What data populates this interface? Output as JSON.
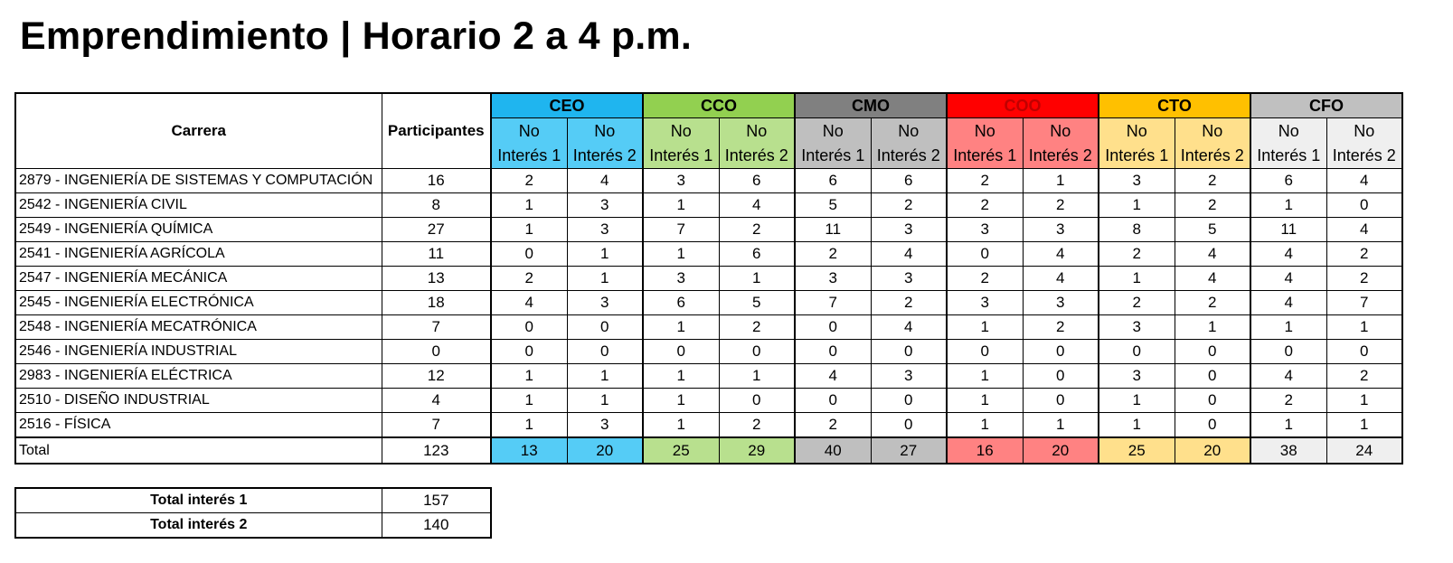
{
  "title": "Emprendimiento | Horario 2 a 4 p.m.",
  "header": {
    "carrera": "Carrera",
    "participantes": "Participantes",
    "groups": [
      {
        "name": "CEO",
        "sub1": [
          "No",
          "Interés 1"
        ],
        "sub2": [
          "No",
          "Interés 2"
        ],
        "color": "#1fb5ef",
        "fill": "#55ccf6"
      },
      {
        "name": "CCO",
        "sub1": [
          "No",
          "Interés 1"
        ],
        "sub2": [
          "No",
          "Interés 2"
        ],
        "color": "#92d050",
        "fill": "#b8e08e"
      },
      {
        "name": "CMO",
        "sub1": [
          "No",
          "Interés 1"
        ],
        "sub2": [
          "No",
          "Interés 2"
        ],
        "color": "#808080",
        "fill": "#bfbfbf"
      },
      {
        "name": "COO",
        "sub1": [
          "No",
          "Interés 1"
        ],
        "sub2": [
          "No",
          "Interés 2"
        ],
        "color": "#ff0000",
        "fill": "#ff8282"
      },
      {
        "name": "CTO",
        "sub1": [
          "No",
          "Interés 1"
        ],
        "sub2": [
          "No",
          "Interés 2"
        ],
        "color": "#ffc000",
        "fill": "#ffe08c"
      },
      {
        "name": "CFO",
        "sub1": [
          "No",
          "Interés 1"
        ],
        "sub2": [
          "No",
          "Interés 2"
        ],
        "color": "#c0c0c0",
        "fill": "#efefef"
      }
    ]
  },
  "rows": [
    {
      "carrera": "2879 - INGENIERÍA DE SISTEMAS Y COMPUTACIÓN",
      "participantes": "16",
      "values": [
        "2",
        "4",
        "3",
        "6",
        "6",
        "6",
        "2",
        "1",
        "3",
        "2",
        "6",
        "4"
      ]
    },
    {
      "carrera": "2542 - INGENIERÍA CIVIL",
      "participantes": "8",
      "values": [
        "1",
        "3",
        "1",
        "4",
        "5",
        "2",
        "2",
        "2",
        "1",
        "2",
        "1",
        "0"
      ]
    },
    {
      "carrera": "2549 - INGENIERÍA QUÍMICA",
      "participantes": "27",
      "values": [
        "1",
        "3",
        "7",
        "2",
        "11",
        "3",
        "3",
        "3",
        "8",
        "5",
        "11",
        "4"
      ]
    },
    {
      "carrera": "2541 - INGENIERÍA AGRÍCOLA",
      "participantes": "11",
      "values": [
        "0",
        "1",
        "1",
        "6",
        "2",
        "4",
        "0",
        "4",
        "2",
        "4",
        "4",
        "2"
      ]
    },
    {
      "carrera": "2547 - INGENIERÍA MECÁNICA",
      "participantes": "13",
      "values": [
        "2",
        "1",
        "3",
        "1",
        "3",
        "3",
        "2",
        "4",
        "1",
        "4",
        "4",
        "2"
      ]
    },
    {
      "carrera": "2545 - INGENIERÍA ELECTRÓNICA",
      "participantes": "18",
      "values": [
        "4",
        "3",
        "6",
        "5",
        "7",
        "2",
        "3",
        "3",
        "2",
        "2",
        "4",
        "7"
      ]
    },
    {
      "carrera": "2548 - INGENIERÍA MECATRÓNICA",
      "participantes": "7",
      "values": [
        "0",
        "0",
        "1",
        "2",
        "0",
        "4",
        "1",
        "2",
        "3",
        "1",
        "1",
        "1"
      ]
    },
    {
      "carrera": "2546 - INGENIERÍA INDUSTRIAL",
      "participantes": "0",
      "values": [
        "0",
        "0",
        "0",
        "0",
        "0",
        "0",
        "0",
        "0",
        "0",
        "0",
        "0",
        "0"
      ]
    },
    {
      "carrera": "2983 - INGENIERÍA ELÉCTRICA",
      "participantes": "12",
      "values": [
        "1",
        "1",
        "1",
        "1",
        "4",
        "3",
        "1",
        "0",
        "3",
        "0",
        "4",
        "2"
      ]
    },
    {
      "carrera": "2510 - DISEÑO INDUSTRIAL",
      "participantes": "4",
      "values": [
        "1",
        "1",
        "1",
        "0",
        "0",
        "0",
        "1",
        "0",
        "1",
        "0",
        "2",
        "1"
      ]
    },
    {
      "carrera": "2516 - FÍSICA",
      "participantes": "7",
      "values": [
        "1",
        "3",
        "1",
        "2",
        "2",
        "0",
        "1",
        "1",
        "1",
        "0",
        "1",
        "1"
      ]
    }
  ],
  "total": {
    "label": "Total",
    "participantes": "123",
    "values": [
      "13",
      "20",
      "25",
      "29",
      "40",
      "27",
      "16",
      "20",
      "25",
      "20",
      "38",
      "24"
    ]
  },
  "summary": [
    {
      "label": "Total interés 1",
      "value": "157"
    },
    {
      "label": "Total interés 2",
      "value": "140"
    }
  ]
}
